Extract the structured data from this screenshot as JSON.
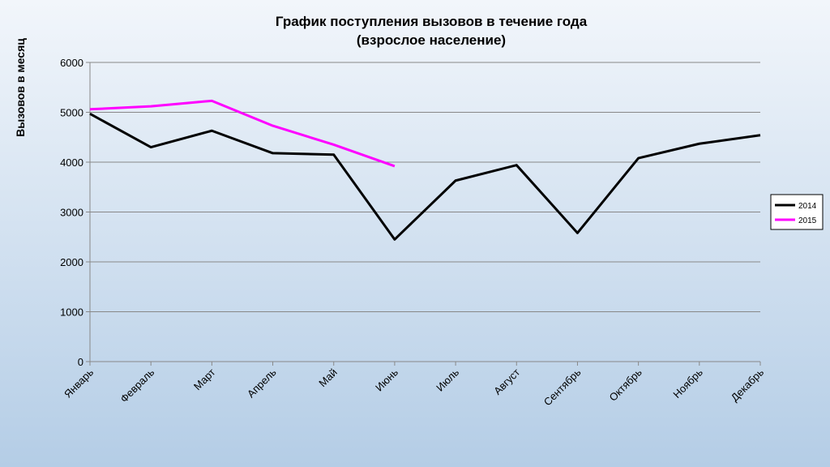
{
  "chart_data": {
    "type": "line",
    "title": "График поступления вызовов в течение года",
    "subtitle": "(взрослое население)",
    "y_label": "Вызовов в месяц",
    "categories": [
      "Январь",
      "Февраль",
      "Март",
      "Апрель",
      "Май",
      "Июнь",
      "Июль",
      "Август",
      "Сентябрь",
      "Октябрь",
      "Ноябрь",
      "Декабрь"
    ],
    "series": [
      {
        "name": "2014",
        "color": "#000000",
        "values": [
          4970,
          4300,
          4630,
          4180,
          4150,
          2450,
          3630,
          3940,
          2580,
          4080,
          4370,
          4540
        ]
      },
      {
        "name": "2015",
        "color": "#ff00ff",
        "values": [
          5060,
          5120,
          5230,
          4730,
          4350,
          3920,
          null,
          null,
          null,
          null,
          null,
          null
        ]
      }
    ],
    "ylim": [
      0,
      6000
    ],
    "yticks": [
      0,
      1000,
      2000,
      3000,
      4000,
      5000,
      6000
    ],
    "grid": true,
    "legend": "right"
  }
}
